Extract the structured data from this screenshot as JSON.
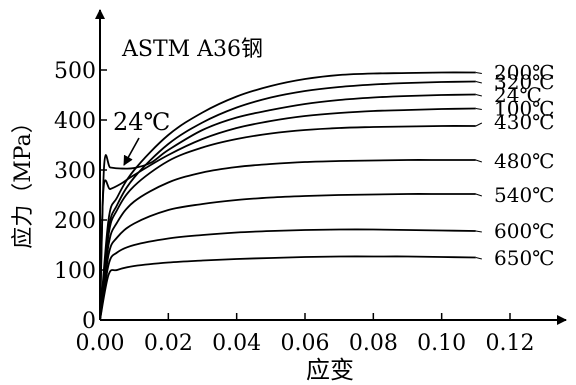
{
  "chart_data": {
    "type": "line",
    "title": "ASTM A36钢",
    "xlabel": "应变",
    "ylabel": "应力（MPa）",
    "xlim": [
      0,
      0.13
    ],
    "ylim": [
      0,
      550
    ],
    "x_ticks": [
      "0.00",
      "0.02",
      "0.04",
      "0.06",
      "0.08",
      "0.10",
      "0.12"
    ],
    "y_ticks": [
      "0",
      "100",
      "200",
      "300",
      "400",
      "500"
    ],
    "grid": false,
    "legend": "curve labels at right end",
    "annotation": {
      "text": "24℃",
      "points_to": "yield plateau of the 24℃ curve"
    },
    "series": [
      {
        "name": "200℃",
        "label_y": 497,
        "points": [
          [
            0,
            0
          ],
          [
            0.0025,
            200
          ],
          [
            0.005,
            245
          ],
          [
            0.01,
            300
          ],
          [
            0.02,
            370
          ],
          [
            0.03,
            415
          ],
          [
            0.04,
            447
          ],
          [
            0.05,
            468
          ],
          [
            0.06,
            482
          ],
          [
            0.07,
            490
          ],
          [
            0.08,
            493
          ],
          [
            0.09,
            494
          ],
          [
            0.1,
            495
          ],
          [
            0.11,
            495
          ]
        ]
      },
      {
        "name": "320℃",
        "label_y": 478,
        "points": [
          [
            0,
            0
          ],
          [
            0.0025,
            180
          ],
          [
            0.005,
            230
          ],
          [
            0.01,
            285
          ],
          [
            0.02,
            352
          ],
          [
            0.03,
            395
          ],
          [
            0.04,
            425
          ],
          [
            0.05,
            445
          ],
          [
            0.06,
            458
          ],
          [
            0.07,
            466
          ],
          [
            0.08,
            471
          ],
          [
            0.09,
            474
          ],
          [
            0.1,
            476
          ],
          [
            0.11,
            477
          ]
        ]
      },
      {
        "name": "24℃",
        "label_y": 452,
        "points": [
          [
            0,
            0
          ],
          [
            0.0012,
            308
          ],
          [
            0.003,
            305
          ],
          [
            0.006,
            303
          ],
          [
            0.01,
            304
          ],
          [
            0.015,
            315
          ],
          [
            0.02,
            340
          ],
          [
            0.03,
            380
          ],
          [
            0.04,
            405
          ],
          [
            0.05,
            420
          ],
          [
            0.06,
            432
          ],
          [
            0.07,
            440
          ],
          [
            0.08,
            445
          ],
          [
            0.09,
            448
          ],
          [
            0.1,
            450
          ],
          [
            0.11,
            451
          ]
        ]
      },
      {
        "name": "100℃",
        "label_y": 425,
        "points": [
          [
            0,
            0
          ],
          [
            0.001,
            260
          ],
          [
            0.003,
            262
          ],
          [
            0.006,
            272
          ],
          [
            0.01,
            290
          ],
          [
            0.02,
            330
          ],
          [
            0.03,
            362
          ],
          [
            0.04,
            384
          ],
          [
            0.05,
            398
          ],
          [
            0.06,
            408
          ],
          [
            0.07,
            414
          ],
          [
            0.08,
            418
          ],
          [
            0.09,
            420
          ],
          [
            0.1,
            422
          ],
          [
            0.11,
            423
          ]
        ]
      },
      {
        "name": "430℃",
        "label_y": 398,
        "points": [
          [
            0,
            0
          ],
          [
            0.0025,
            170
          ],
          [
            0.005,
            220
          ],
          [
            0.01,
            268
          ],
          [
            0.02,
            318
          ],
          [
            0.03,
            345
          ],
          [
            0.04,
            362
          ],
          [
            0.05,
            373
          ],
          [
            0.06,
            380
          ],
          [
            0.07,
            384
          ],
          [
            0.08,
            386
          ],
          [
            0.09,
            387
          ],
          [
            0.1,
            388
          ],
          [
            0.11,
            388
          ]
        ]
      },
      {
        "name": "480℃",
        "label_y": 320,
        "points": [
          [
            0,
            0
          ],
          [
            0.0025,
            150
          ],
          [
            0.005,
            195
          ],
          [
            0.01,
            237
          ],
          [
            0.02,
            275
          ],
          [
            0.03,
            295
          ],
          [
            0.04,
            306
          ],
          [
            0.05,
            312
          ],
          [
            0.06,
            316
          ],
          [
            0.07,
            318
          ],
          [
            0.08,
            319
          ],
          [
            0.09,
            320
          ],
          [
            0.1,
            320
          ],
          [
            0.11,
            320
          ]
        ]
      },
      {
        "name": "540℃",
        "label_y": 252,
        "points": [
          [
            0,
            0
          ],
          [
            0.0025,
            130
          ],
          [
            0.005,
            165
          ],
          [
            0.01,
            193
          ],
          [
            0.02,
            220
          ],
          [
            0.03,
            232
          ],
          [
            0.04,
            240
          ],
          [
            0.05,
            245
          ],
          [
            0.06,
            248
          ],
          [
            0.07,
            250
          ],
          [
            0.08,
            251
          ],
          [
            0.09,
            252
          ],
          [
            0.1,
            252
          ],
          [
            0.11,
            252
          ]
        ]
      },
      {
        "name": "600℃",
        "label_y": 180,
        "points": [
          [
            0,
            0
          ],
          [
            0.0025,
            110
          ],
          [
            0.005,
            135
          ],
          [
            0.01,
            150
          ],
          [
            0.02,
            163
          ],
          [
            0.03,
            170
          ],
          [
            0.04,
            175
          ],
          [
            0.05,
            178
          ],
          [
            0.06,
            180
          ],
          [
            0.07,
            181
          ],
          [
            0.08,
            181
          ],
          [
            0.09,
            180
          ],
          [
            0.1,
            179
          ],
          [
            0.11,
            178
          ]
        ]
      },
      {
        "name": "650℃",
        "label_y": 126,
        "points": [
          [
            0,
            0
          ],
          [
            0.0025,
            90
          ],
          [
            0.005,
            100
          ],
          [
            0.01,
            108
          ],
          [
            0.02,
            115
          ],
          [
            0.03,
            119
          ],
          [
            0.04,
            122
          ],
          [
            0.05,
            124
          ],
          [
            0.06,
            126
          ],
          [
            0.07,
            127
          ],
          [
            0.08,
            127
          ],
          [
            0.09,
            127
          ],
          [
            0.1,
            126
          ],
          [
            0.11,
            125
          ]
        ]
      }
    ]
  }
}
